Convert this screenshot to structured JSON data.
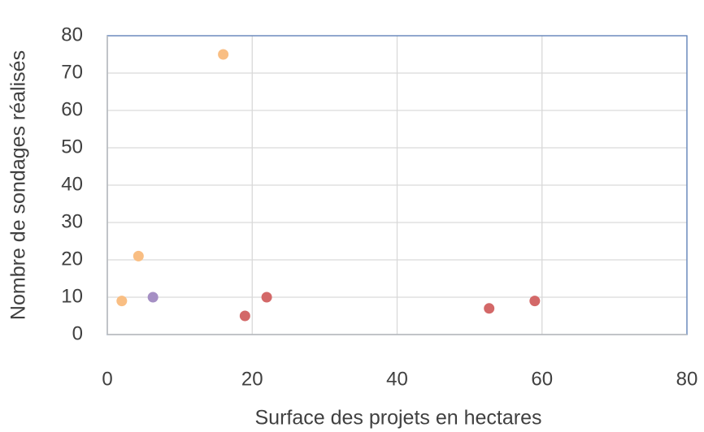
{
  "chart_data": {
    "type": "scatter",
    "x_label": "Surface des projets en hectares",
    "y_label": "Nombre de sondages réalisés",
    "xlim": [
      0,
      80
    ],
    "xticks": [
      0,
      20,
      40,
      60,
      80
    ],
    "ylim": [
      0,
      80
    ],
    "yticks": [
      0,
      10,
      20,
      30,
      40,
      50,
      60,
      70,
      80
    ],
    "grid": true,
    "series": [
      {
        "color": "#f9be83",
        "x": [
          2,
          4.3,
          16
        ],
        "values": [
          9,
          21,
          75
        ]
      },
      {
        "color": "#a58fc4",
        "x": [
          6.3
        ],
        "values": [
          10
        ]
      },
      {
        "color": "#d36868",
        "x": [
          19,
          22,
          52.7,
          59
        ],
        "values": [
          5,
          10,
          7,
          9
        ]
      }
    ]
  }
}
